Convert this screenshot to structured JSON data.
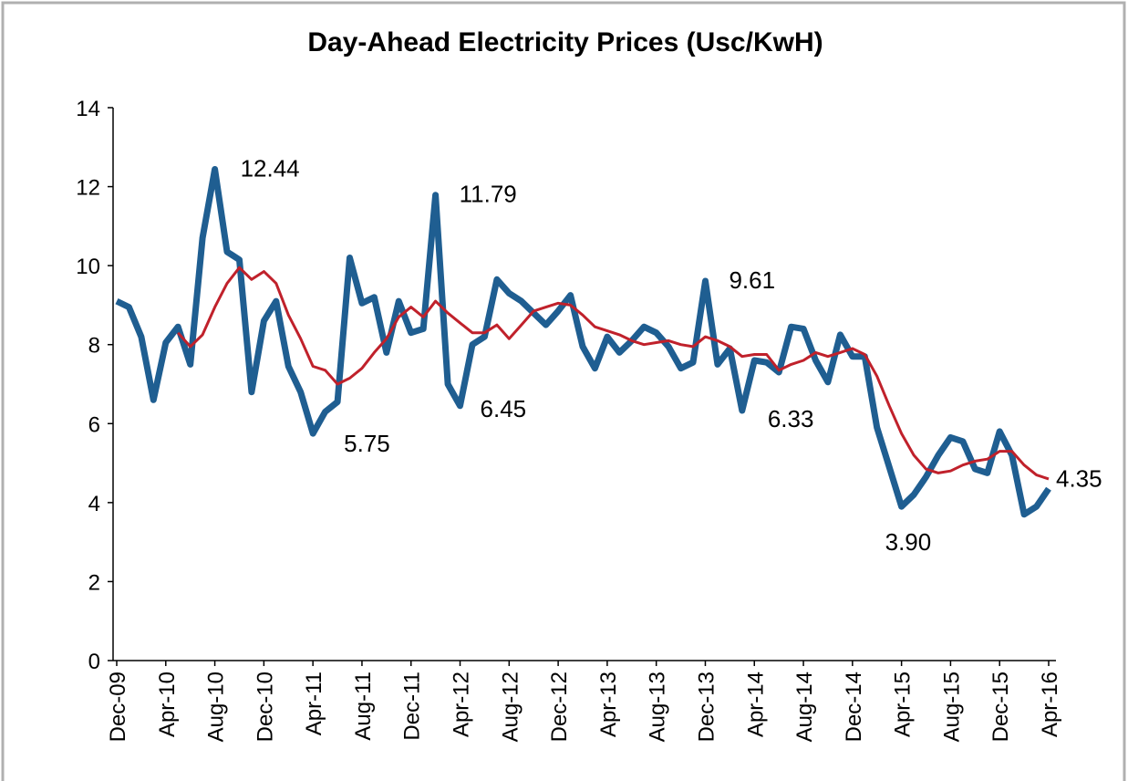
{
  "chart_data": {
    "type": "line",
    "title": "Day-Ahead Electricity Prices (Usc/KwH)",
    "categories": [
      "Dec-09",
      null,
      null,
      null,
      "Apr-10",
      null,
      null,
      null,
      "Aug-10",
      null,
      null,
      null,
      "Dec-10",
      null,
      null,
      null,
      "Apr-11",
      null,
      null,
      null,
      "Aug-11",
      null,
      null,
      null,
      "Dec-11",
      null,
      null,
      null,
      "Apr-12",
      null,
      null,
      null,
      "Aug-12",
      null,
      null,
      null,
      "Dec-12",
      null,
      null,
      null,
      "Apr-13",
      null,
      null,
      null,
      "Aug-13",
      null,
      null,
      null,
      "Dec-13",
      null,
      null,
      null,
      "Apr-14",
      null,
      null,
      null,
      "Aug-14",
      null,
      null,
      null,
      "Dec-14",
      null,
      null,
      null,
      "Apr-15",
      null,
      null,
      null,
      "Aug-15",
      null,
      null,
      null,
      "Dec-15",
      null,
      null,
      null,
      "Apr-16"
    ],
    "series": [
      {
        "color": "#1f5e91",
        "values": [
          9.1,
          8.95,
          8.2,
          6.6,
          8.05,
          8.45,
          7.5,
          10.7,
          12.44,
          10.35,
          10.15,
          6.8,
          8.6,
          9.1,
          7.45,
          6.8,
          5.75,
          6.3,
          6.55,
          10.2,
          9.05,
          9.2,
          7.8,
          9.1,
          8.3,
          8.4,
          11.79,
          7.0,
          6.45,
          8.0,
          8.2,
          9.65,
          9.3,
          9.1,
          8.8,
          8.5,
          8.85,
          9.25,
          7.95,
          7.4,
          8.2,
          7.8,
          8.1,
          8.45,
          8.3,
          7.95,
          7.4,
          7.55,
          9.61,
          7.5,
          7.9,
          6.33,
          7.6,
          7.55,
          7.3,
          8.45,
          8.4,
          7.6,
          7.05,
          8.25,
          7.7,
          7.7,
          5.9,
          4.9,
          3.9,
          4.2,
          4.65,
          5.2,
          5.65,
          5.55,
          4.85,
          4.75,
          5.8,
          5.2,
          3.7,
          3.9,
          4.35
        ],
        "value_labels": [
          null,
          null,
          null,
          null,
          null,
          null,
          null,
          null,
          "12.44",
          null,
          null,
          null,
          null,
          null,
          null,
          null,
          "5.75",
          null,
          null,
          null,
          null,
          null,
          null,
          null,
          null,
          null,
          "11.79",
          null,
          "6.45",
          null,
          null,
          null,
          null,
          null,
          null,
          null,
          null,
          null,
          null,
          null,
          null,
          null,
          null,
          null,
          null,
          null,
          null,
          null,
          "9.61",
          null,
          null,
          "6.33",
          null,
          null,
          null,
          null,
          null,
          null,
          null,
          null,
          null,
          null,
          null,
          null,
          "3.90",
          null,
          null,
          null,
          null,
          null,
          null,
          null,
          null,
          null,
          null,
          null,
          "4.35"
        ]
      },
      {
        "color": "#c0212b",
        "values": [
          null,
          null,
          null,
          null,
          null,
          8.3,
          7.95,
          8.25,
          8.95,
          9.55,
          9.95,
          9.65,
          9.85,
          9.55,
          8.75,
          8.15,
          7.45,
          7.35,
          7.0,
          7.15,
          7.4,
          7.8,
          8.15,
          8.7,
          8.95,
          8.7,
          9.1,
          8.8,
          8.55,
          8.3,
          8.3,
          8.5,
          8.15,
          8.5,
          8.85,
          8.95,
          9.05,
          9.0,
          8.75,
          8.45,
          8.35,
          8.25,
          8.1,
          8.0,
          8.05,
          8.1,
          8.0,
          7.95,
          8.2,
          8.1,
          7.95,
          7.7,
          7.75,
          7.75,
          7.35,
          7.5,
          7.6,
          7.8,
          7.7,
          7.8,
          7.9,
          7.75,
          7.2,
          6.45,
          5.75,
          5.2,
          4.85,
          4.75,
          4.8,
          4.95,
          5.05,
          5.1,
          5.3,
          5.3,
          4.95,
          4.7,
          4.6
        ]
      }
    ],
    "ylim": [
      0,
      14
    ],
    "yticks": [
      0,
      2,
      4,
      6,
      8,
      10,
      12,
      14
    ]
  }
}
